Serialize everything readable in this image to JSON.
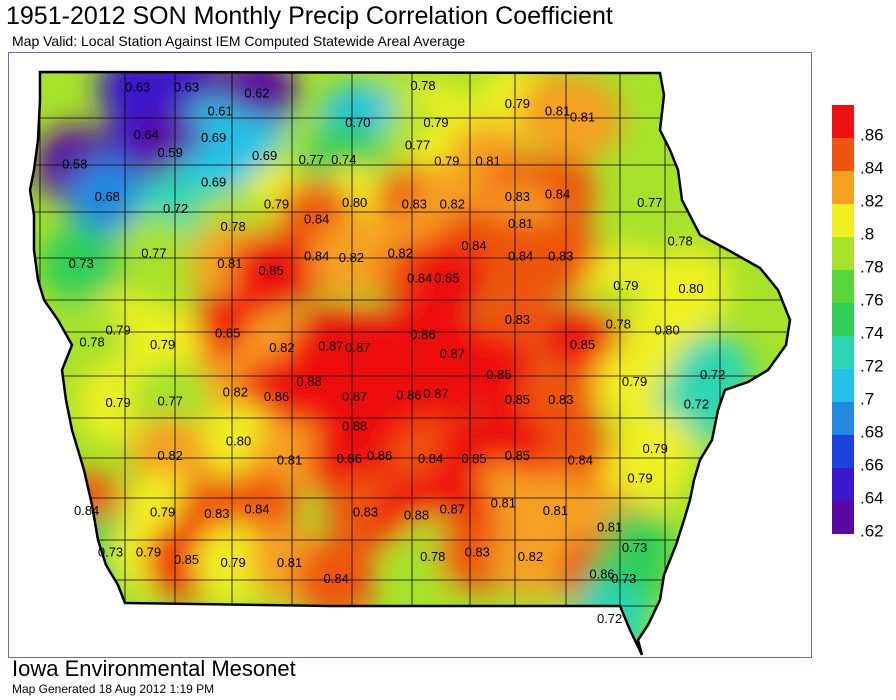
{
  "title": "1951-2012 SON Monthly Precip Correlation Coefficient",
  "subtitle": "Map Valid: Local Station Against IEM Computed Statewide Areal Average",
  "footer": {
    "organization": "Iowa Environmental Mesonet",
    "generated": "Map Generated 18 Aug 2012 1:19 PM"
  },
  "legend": {
    "ticks": [
      ".86",
      ".84",
      ".82",
      ".8",
      ".78",
      ".76",
      ".74",
      ".72",
      ".7",
      ".68",
      ".66",
      ".64",
      ".62"
    ],
    "colors": [
      "#ee1111",
      "#ee5511",
      "#f5a020",
      "#f0f020",
      "#a6e22a",
      "#58d63c",
      "#2ece58",
      "#2ad6b4",
      "#21c2e6",
      "#2288e0",
      "#1c44dd",
      "#3b18cc",
      "#5a0aa2"
    ]
  },
  "stations": [
    {
      "value": "0.63",
      "lon": -95.7,
      "lat": 43.44
    },
    {
      "value": "0.63",
      "lon": -95.25,
      "lat": 43.44
    },
    {
      "value": "0.62",
      "lon": -94.6,
      "lat": 43.4
    },
    {
      "value": "0.61",
      "lon": -94.94,
      "lat": 43.28
    },
    {
      "value": "0.78",
      "lon": -93.07,
      "lat": 43.45
    },
    {
      "value": "0.79",
      "lon": -92.2,
      "lat": 43.33
    },
    {
      "value": "0.81",
      "lon": -91.83,
      "lat": 43.28
    },
    {
      "value": "0.81",
      "lon": -91.6,
      "lat": 43.24
    },
    {
      "value": "0.70",
      "lon": -93.67,
      "lat": 43.2
    },
    {
      "value": "0.79",
      "lon": -92.95,
      "lat": 43.2
    },
    {
      "value": "0.64",
      "lon": -95.62,
      "lat": 43.12
    },
    {
      "value": "0.69",
      "lon": -95.0,
      "lat": 43.1
    },
    {
      "value": "0.77",
      "lon": -93.12,
      "lat": 43.05
    },
    {
      "value": "0.59",
      "lon": -95.4,
      "lat": 43.0
    },
    {
      "value": "0.69",
      "lon": -94.53,
      "lat": 42.98
    },
    {
      "value": "0.77",
      "lon": -94.1,
      "lat": 42.95
    },
    {
      "value": "0.74",
      "lon": -93.8,
      "lat": 42.95
    },
    {
      "value": "0.79",
      "lon": -92.85,
      "lat": 42.94
    },
    {
      "value": "0.81",
      "lon": -92.47,
      "lat": 42.94
    },
    {
      "value": "0.58",
      "lon": -96.28,
      "lat": 42.92
    },
    {
      "value": "0.69",
      "lon": -95.0,
      "lat": 42.8
    },
    {
      "value": "0.68",
      "lon": -95.98,
      "lat": 42.7
    },
    {
      "value": "0.83",
      "lon": -92.2,
      "lat": 42.7
    },
    {
      "value": "0.84",
      "lon": -91.83,
      "lat": 42.72
    },
    {
      "value": "0.72",
      "lon": -95.35,
      "lat": 42.62
    },
    {
      "value": "0.79",
      "lon": -94.42,
      "lat": 42.65
    },
    {
      "value": "0.80",
      "lon": -93.7,
      "lat": 42.66
    },
    {
      "value": "0.83",
      "lon": -93.15,
      "lat": 42.65
    },
    {
      "value": "0.82",
      "lon": -92.8,
      "lat": 42.65
    },
    {
      "value": "0.77",
      "lon": -90.98,
      "lat": 42.66
    },
    {
      "value": "0.84",
      "lon": -94.05,
      "lat": 42.55
    },
    {
      "value": "0.81",
      "lon": -92.17,
      "lat": 42.52
    },
    {
      "value": "0.78",
      "lon": -94.82,
      "lat": 42.5
    },
    {
      "value": "0.84",
      "lon": -92.6,
      "lat": 42.37
    },
    {
      "value": "0.78",
      "lon": -90.7,
      "lat": 42.4
    },
    {
      "value": "0.77",
      "lon": -95.55,
      "lat": 42.32
    },
    {
      "value": "0.84",
      "lon": -94.05,
      "lat": 42.3
    },
    {
      "value": "0.82",
      "lon": -93.73,
      "lat": 42.29
    },
    {
      "value": "0.82",
      "lon": -93.28,
      "lat": 42.32
    },
    {
      "value": "0.84",
      "lon": -92.17,
      "lat": 42.3
    },
    {
      "value": "0.83",
      "lon": -91.8,
      "lat": 42.3
    },
    {
      "value": "0.73",
      "lon": -96.22,
      "lat": 42.25
    },
    {
      "value": "0.81",
      "lon": -94.85,
      "lat": 42.25
    },
    {
      "value": "0.85",
      "lon": -94.47,
      "lat": 42.2
    },
    {
      "value": "0.84",
      "lon": -93.1,
      "lat": 42.15
    },
    {
      "value": "0.85",
      "lon": -92.85,
      "lat": 42.15
    },
    {
      "value": "0.79",
      "lon": -91.2,
      "lat": 42.1
    },
    {
      "value": "0.80",
      "lon": -90.6,
      "lat": 42.08
    },
    {
      "value": "0.83",
      "lon": -92.2,
      "lat": 41.87
    },
    {
      "value": "0.78",
      "lon": -91.27,
      "lat": 41.84
    },
    {
      "value": "0.80",
      "lon": -90.82,
      "lat": 41.8
    },
    {
      "value": "0.79",
      "lon": -95.88,
      "lat": 41.8
    },
    {
      "value": "0.85",
      "lon": -94.87,
      "lat": 41.78
    },
    {
      "value": "0.86",
      "lon": -93.07,
      "lat": 41.77
    },
    {
      "value": "0.78",
      "lon": -96.12,
      "lat": 41.72
    },
    {
      "value": "0.79",
      "lon": -95.47,
      "lat": 41.7
    },
    {
      "value": "0.82",
      "lon": -94.37,
      "lat": 41.68
    },
    {
      "value": "0.87",
      "lon": -93.92,
      "lat": 41.69
    },
    {
      "value": "0.87",
      "lon": -93.67,
      "lat": 41.68
    },
    {
      "value": "0.87",
      "lon": -92.8,
      "lat": 41.64
    },
    {
      "value": "0.85",
      "lon": -91.6,
      "lat": 41.7
    },
    {
      "value": "0.85",
      "lon": -92.37,
      "lat": 41.5
    },
    {
      "value": "0.72",
      "lon": -90.4,
      "lat": 41.5
    },
    {
      "value": "0.88",
      "lon": -94.12,
      "lat": 41.45
    },
    {
      "value": "0.82",
      "lon": -94.8,
      "lat": 41.38
    },
    {
      "value": "0.86",
      "lon": -94.42,
      "lat": 41.35
    },
    {
      "value": "0.87",
      "lon": -93.7,
      "lat": 41.35
    },
    {
      "value": "0.86",
      "lon": -93.2,
      "lat": 41.36
    },
    {
      "value": "0.87",
      "lon": -92.95,
      "lat": 41.37
    },
    {
      "value": "0.85",
      "lon": -92.2,
      "lat": 41.33
    },
    {
      "value": "0.83",
      "lon": -91.8,
      "lat": 41.33
    },
    {
      "value": "0.79",
      "lon": -91.12,
      "lat": 41.45
    },
    {
      "value": "0.79",
      "lon": -95.88,
      "lat": 41.31
    },
    {
      "value": "0.77",
      "lon": -95.4,
      "lat": 41.32
    },
    {
      "value": "0.72",
      "lon": -90.55,
      "lat": 41.3
    },
    {
      "value": "0.88",
      "lon": -93.7,
      "lat": 41.15
    },
    {
      "value": "0.80",
      "lon": -94.77,
      "lat": 41.05
    },
    {
      "value": "0.79",
      "lon": -90.93,
      "lat": 41.0
    },
    {
      "value": "0.82",
      "lon": -95.4,
      "lat": 40.95
    },
    {
      "value": "0.81",
      "lon": -94.3,
      "lat": 40.92
    },
    {
      "value": "0.86",
      "lon": -93.75,
      "lat": 40.93
    },
    {
      "value": "0.86",
      "lon": -93.47,
      "lat": 40.95
    },
    {
      "value": "0.84",
      "lon": -93.0,
      "lat": 40.93
    },
    {
      "value": "0.85",
      "lon": -92.6,
      "lat": 40.93
    },
    {
      "value": "0.85",
      "lon": -92.2,
      "lat": 40.95
    },
    {
      "value": "0.84",
      "lon": -91.62,
      "lat": 40.92
    },
    {
      "value": "0.79",
      "lon": -91.07,
      "lat": 40.8
    },
    {
      "value": "0.81",
      "lon": -92.33,
      "lat": 40.63
    },
    {
      "value": "0.84",
      "lon": -96.17,
      "lat": 40.58
    },
    {
      "value": "0.79",
      "lon": -95.47,
      "lat": 40.57
    },
    {
      "value": "0.83",
      "lon": -94.97,
      "lat": 40.56
    },
    {
      "value": "0.84",
      "lon": -94.6,
      "lat": 40.59
    },
    {
      "value": "0.83",
      "lon": -93.6,
      "lat": 40.57
    },
    {
      "value": "0.88",
      "lon": -93.13,
      "lat": 40.55
    },
    {
      "value": "0.87",
      "lon": -92.8,
      "lat": 40.59
    },
    {
      "value": "0.81",
      "lon": -91.85,
      "lat": 40.58
    },
    {
      "value": "0.81",
      "lon": -91.35,
      "lat": 40.47
    },
    {
      "value": "0.73",
      "lon": -95.95,
      "lat": 40.3
    },
    {
      "value": "0.79",
      "lon": -95.6,
      "lat": 40.3
    },
    {
      "value": "0.85",
      "lon": -95.25,
      "lat": 40.25
    },
    {
      "value": "0.79",
      "lon": -94.82,
      "lat": 40.23
    },
    {
      "value": "0.81",
      "lon": -94.3,
      "lat": 40.23
    },
    {
      "value": "0.84",
      "lon": -93.87,
      "lat": 40.12
    },
    {
      "value": "0.78",
      "lon": -92.98,
      "lat": 40.27
    },
    {
      "value": "0.83",
      "lon": -92.57,
      "lat": 40.3
    },
    {
      "value": "0.82",
      "lon": -92.08,
      "lat": 40.27
    },
    {
      "value": "0.73",
      "lon": -91.12,
      "lat": 40.33
    },
    {
      "value": "0.86",
      "lon": -91.42,
      "lat": 40.15
    },
    {
      "value": "0.73",
      "lon": -91.22,
      "lat": 40.12
    },
    {
      "value": "0.72",
      "lon": -91.35,
      "lat": 39.85
    }
  ]
}
